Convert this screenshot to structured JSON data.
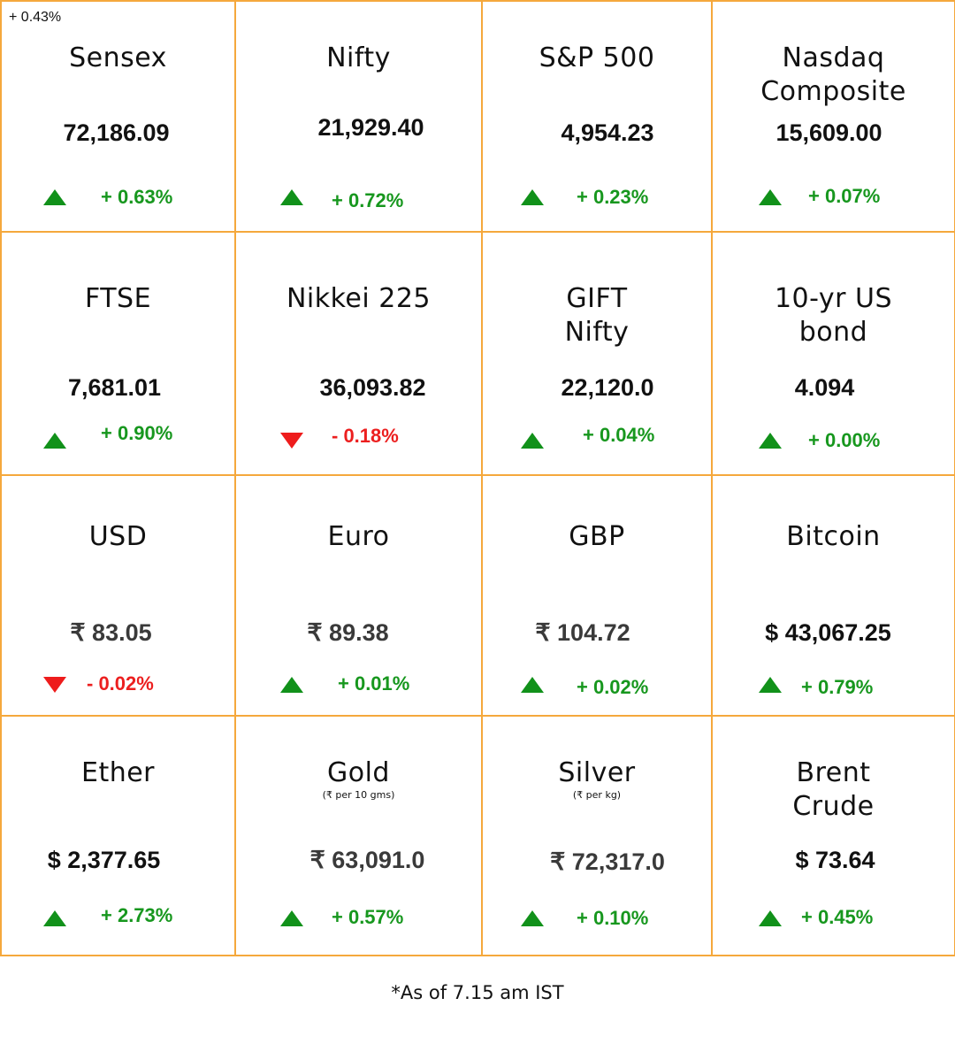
{
  "stray_label": "+ 0.43%",
  "colors": {
    "border": "#f5a83c",
    "up": "#17971e",
    "down": "#ec1f1f"
  },
  "tiles": [
    {
      "name": "Sensex",
      "value": "72,186.09",
      "change": "+ 0.63%",
      "direction": "up",
      "value_color": "#111111"
    },
    {
      "name": "Nifty",
      "value": "21,929.40",
      "change": "+ 0.72%",
      "direction": "up",
      "value_color": "#111111"
    },
    {
      "name": "S&P 500",
      "value": "4,954.23",
      "change": "+ 0.23%",
      "direction": "up",
      "value_color": "#111111"
    },
    {
      "name": "Nasdaq\nComposite",
      "value": "15,609.00",
      "change": "+ 0.07%",
      "direction": "up",
      "value_color": "#111111"
    },
    {
      "name": "FTSE",
      "value": "7,681.01",
      "change": "+ 0.90%",
      "direction": "up",
      "value_color": "#111111"
    },
    {
      "name": "Nikkei 225",
      "value": "36,093.82",
      "change": "- 0.18%",
      "direction": "down",
      "value_color": "#111111"
    },
    {
      "name": "GIFT\nNifty",
      "value": "22,120.0",
      "change": "+ 0.04%",
      "direction": "up",
      "value_color": "#111111"
    },
    {
      "name": "10-yr US\nbond",
      "value": "4.094",
      "change": "+ 0.00%",
      "direction": "up",
      "value_color": "#111111"
    },
    {
      "name": "USD",
      "value": "₹ 83.05",
      "change": "- 0.02%",
      "direction": "down",
      "value_color": "#3a3a3a"
    },
    {
      "name": "Euro",
      "value": "₹ 89.38",
      "change": "+ 0.01%",
      "direction": "up",
      "value_color": "#3a3a3a"
    },
    {
      "name": "GBP",
      "value": "₹ 104.72",
      "change": "+ 0.02%",
      "direction": "up",
      "value_color": "#3a3a3a"
    },
    {
      "name": "Bitcoin",
      "value": "$ 43,067.25",
      "change": "+ 0.79%",
      "direction": "up",
      "value_color": "#111111"
    },
    {
      "name": "Ether",
      "value": "$ 2,377.65",
      "change": "+ 2.73%",
      "direction": "up",
      "value_color": "#111111"
    },
    {
      "name": "Gold",
      "note": "(₹ per 10 gms)",
      "value": "₹ 63,091.0",
      "change": "+ 0.57%",
      "direction": "up",
      "value_color": "#3a3a3a"
    },
    {
      "name": "Silver",
      "note": "(₹ per kg)",
      "value": "₹ 72,317.0",
      "change": "+ 0.10%",
      "direction": "up",
      "value_color": "#3a3a3a"
    },
    {
      "name": "Brent\nCrude",
      "value": "$ 73.64",
      "change": "+ 0.45%",
      "direction": "up",
      "value_color": "#111111"
    }
  ],
  "footer": "*As of 7.15 am IST"
}
